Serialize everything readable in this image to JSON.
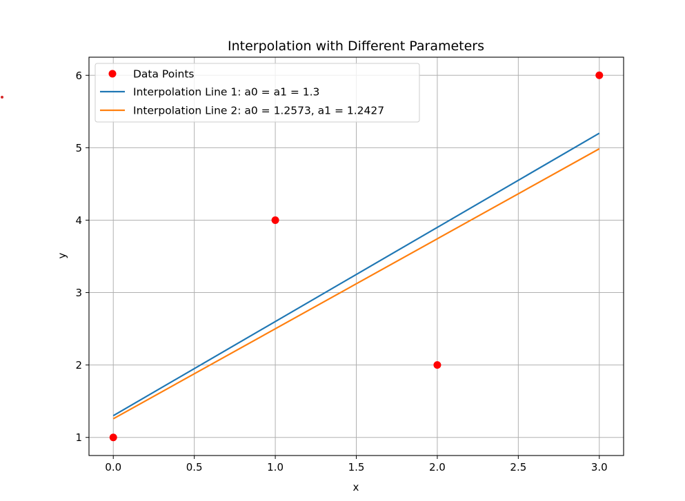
{
  "chart_data": {
    "type": "line",
    "title": "Interpolation with Different Parameters",
    "xlabel": "x",
    "ylabel": "y",
    "xlim": [
      -0.15,
      3.15
    ],
    "ylim": [
      0.75,
      6.25
    ],
    "grid": true,
    "legend_position": "top-left",
    "x_ticks": [
      "0.0",
      "0.5",
      "1.0",
      "1.5",
      "2.0",
      "2.5",
      "3.0"
    ],
    "y_ticks": [
      "1",
      "2",
      "3",
      "4",
      "5",
      "6"
    ],
    "series": [
      {
        "name": "Data Points",
        "kind": "scatter",
        "color": "#ff0000",
        "x": [
          0,
          1,
          2,
          3
        ],
        "y": [
          1,
          4,
          2,
          6
        ]
      },
      {
        "name": "Interpolation Line 1: a0 = a1 = 1.3",
        "kind": "line",
        "color": "#1f77b4",
        "x": [
          0,
          3
        ],
        "y": [
          1.3,
          5.2
        ]
      },
      {
        "name": "Interpolation Line 2: a0 = 1.2573, a1 = 1.2427",
        "kind": "line",
        "color": "#ff7f0e",
        "x": [
          0,
          3
        ],
        "y": [
          1.2573,
          4.9854
        ]
      }
    ]
  }
}
